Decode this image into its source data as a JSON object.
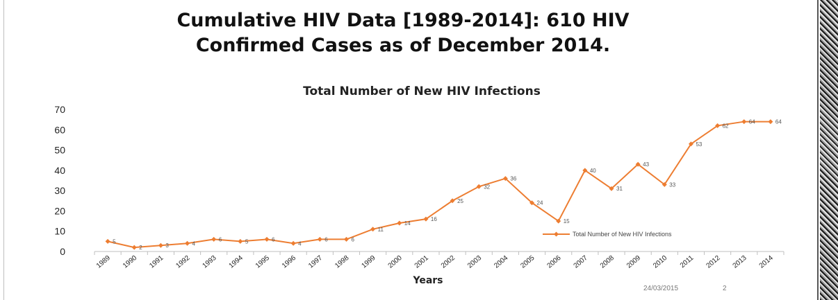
{
  "slide": {
    "title_line1": "Cumulative HIV Data [1989-2014]: 610 HIV",
    "title_line2": "Confirmed Cases as of December 2014.",
    "footer_date": "24/03/2015",
    "footer_page": "2"
  },
  "colors": {
    "series": "#ED7D31",
    "axis": "#bfbfbf",
    "text": "#222222"
  },
  "chart_data": {
    "type": "line",
    "title": "Total Number of New HIV Infections",
    "xlabel": "Years",
    "ylabel": "",
    "ylim": [
      0,
      70
    ],
    "yticks": [
      0,
      10,
      20,
      30,
      40,
      50,
      60,
      70
    ],
    "grid": false,
    "legend_position": "bottom-right",
    "categories": [
      "1989",
      "1990",
      "1991",
      "1992",
      "1993",
      "1994",
      "1995",
      "1996",
      "1997",
      "1998",
      "1999",
      "2000",
      "2001",
      "2002",
      "2003",
      "2004",
      "2005",
      "2006",
      "2007",
      "2008",
      "2009",
      "2010",
      "2011",
      "2012",
      "2013",
      "2014"
    ],
    "series": [
      {
        "name": "Total Number of New HIV Infections",
        "values": [
          5,
          2,
          3,
          4,
          6,
          5,
          6,
          4,
          6,
          6,
          11,
          14,
          16,
          25,
          32,
          36,
          24,
          15,
          40,
          31,
          43,
          33,
          53,
          62,
          64,
          64
        ],
        "labels": [
          "5",
          "2",
          "3",
          "4",
          "6",
          "5",
          "6",
          "4",
          "6",
          "6",
          "11",
          "14",
          "16",
          "25",
          "32",
          "36",
          "24",
          "15",
          "40",
          "31",
          "43",
          "33",
          "53",
          "62",
          "64",
          "64"
        ]
      }
    ]
  }
}
